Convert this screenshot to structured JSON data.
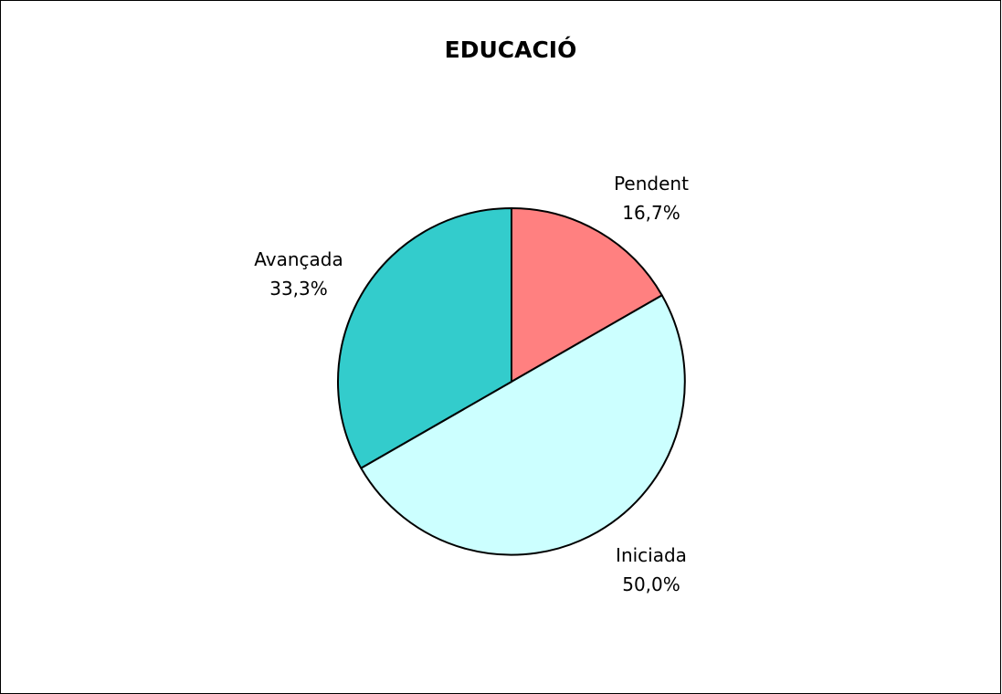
{
  "chart_data": {
    "type": "pie",
    "title": "EDUCACIÓ",
    "slices": [
      {
        "label": "Pendent",
        "value": 16.7,
        "value_label": "16,7%",
        "color": "#ff8080"
      },
      {
        "label": "Iniciada",
        "value": 50.0,
        "value_label": "50,0%",
        "color": "#ccffff"
      },
      {
        "label": "Avançada",
        "value": 33.3,
        "value_label": "33,3%",
        "color": "#33cccc"
      }
    ],
    "start": "12 o'clock",
    "direction": "clockwise",
    "legend": "none",
    "slice_border_color": "#000000"
  }
}
